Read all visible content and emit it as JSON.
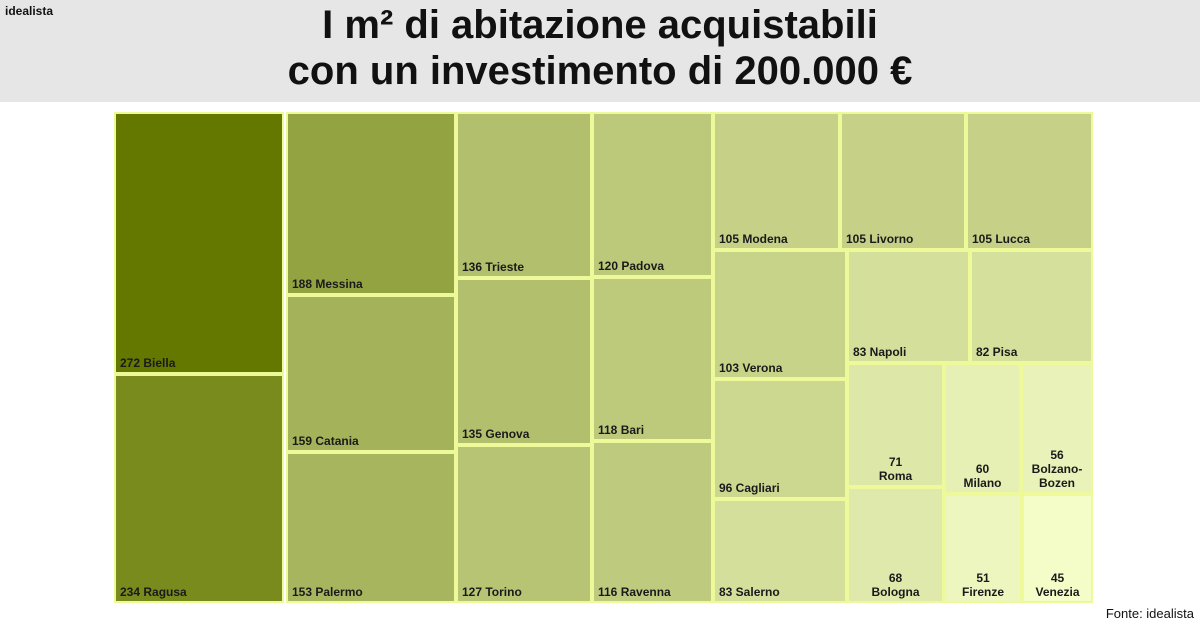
{
  "brand": "idealista",
  "title_line1": "I m² di abitazione acquistabili",
  "title_line2": "con un investimento di 200.000 €",
  "source": "Fonte: idealista",
  "chart_data": {
    "type": "treemap",
    "unit": "m²",
    "investment": "200.000 €",
    "colors": {
      "dark": "#647800",
      "light": "#f4fcc8",
      "border": "#eefa9a"
    },
    "items": [
      {
        "city": "Biella",
        "value": 272
      },
      {
        "city": "Ragusa",
        "value": 234
      },
      {
        "city": "Messina",
        "value": 188
      },
      {
        "city": "Catania",
        "value": 159
      },
      {
        "city": "Palermo",
        "value": 153
      },
      {
        "city": "Trieste",
        "value": 136
      },
      {
        "city": "Genova",
        "value": 135
      },
      {
        "city": "Torino",
        "value": 127
      },
      {
        "city": "Padova",
        "value": 120
      },
      {
        "city": "Bari",
        "value": 118
      },
      {
        "city": "Ravenna",
        "value": 116
      },
      {
        "city": "Modena",
        "value": 105
      },
      {
        "city": "Livorno",
        "value": 105
      },
      {
        "city": "Lucca",
        "value": 105
      },
      {
        "city": "Verona",
        "value": 103
      },
      {
        "city": "Cagliari",
        "value": 96
      },
      {
        "city": "Salerno",
        "value": 83
      },
      {
        "city": "Napoli",
        "value": 83
      },
      {
        "city": "Pisa",
        "value": 82
      },
      {
        "city": "Roma",
        "value": 71
      },
      {
        "city": "Bologna",
        "value": 68
      },
      {
        "city": "Milano",
        "value": 60
      },
      {
        "city": "Bolzano-Bozen",
        "value": 56
      },
      {
        "city": "Firenze",
        "value": 51
      },
      {
        "city": "Venezia",
        "value": 45
      }
    ]
  }
}
